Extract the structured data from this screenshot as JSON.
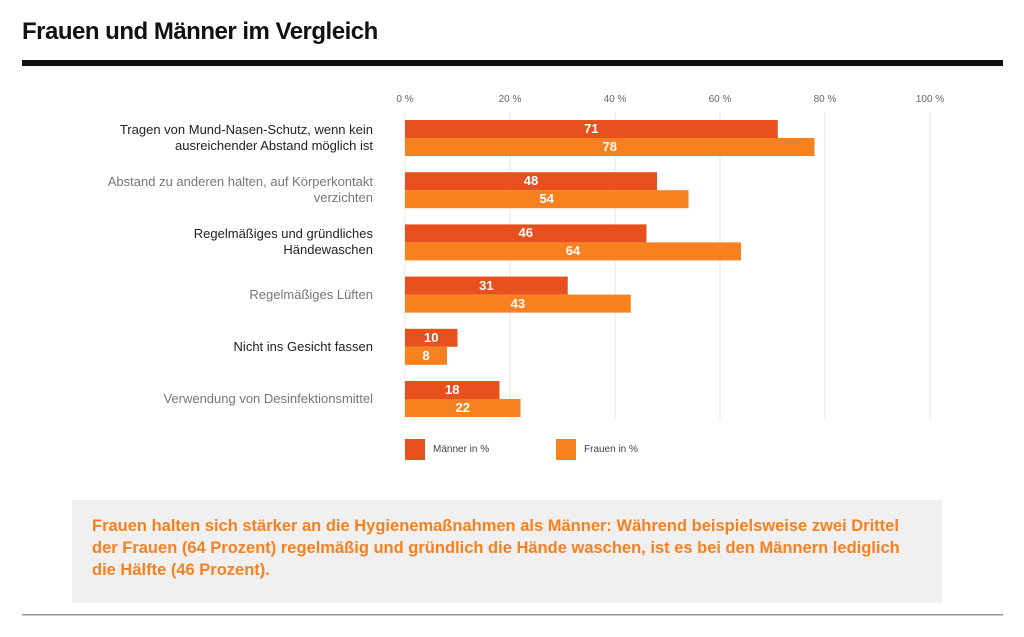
{
  "title": "Frauen und Männer im Vergleich",
  "chart_data": {
    "type": "hbar",
    "categories": [
      "Tragen von Mund-Nasen-Schutz, wenn kein ausreichender Abstand möglich ist",
      "Abstand zu anderen halten, auf Körperkontakt verzichten",
      "Regelmäßiges und gründliches Händewaschen",
      "Regelmäßiges Lüften",
      "Nicht ins Gesicht fassen",
      "Verwendung von Desinfektionsmittel"
    ],
    "series": [
      {
        "name": "Männer in %",
        "color": "#e8501e",
        "values": [
          71,
          48,
          46,
          31,
          10,
          18
        ]
      },
      {
        "name": "Frauen in %",
        "color": "#f7801f",
        "values": [
          78,
          54,
          64,
          43,
          8,
          22
        ]
      }
    ],
    "xlim": [
      0,
      100
    ],
    "xticks": [
      {
        "value": 0,
        "label": "0 %"
      },
      {
        "value": 20,
        "label": "20 %"
      },
      {
        "value": 40,
        "label": "40 %"
      },
      {
        "value": 60,
        "label": "60 %"
      },
      {
        "value": 80,
        "label": "80 %"
      },
      {
        "value": 100,
        "label": "100 %"
      }
    ],
    "grid": true
  },
  "note": "Frauen halten sich stärker an die Hygienemaßnahmen als Männer: Während beispielsweise zwei Drittel der Frauen (64 Prozent) regelmäßig und gründlich die Hände waschen, ist es bei den Männern lediglich die Hälfte (46 Prozent)."
}
